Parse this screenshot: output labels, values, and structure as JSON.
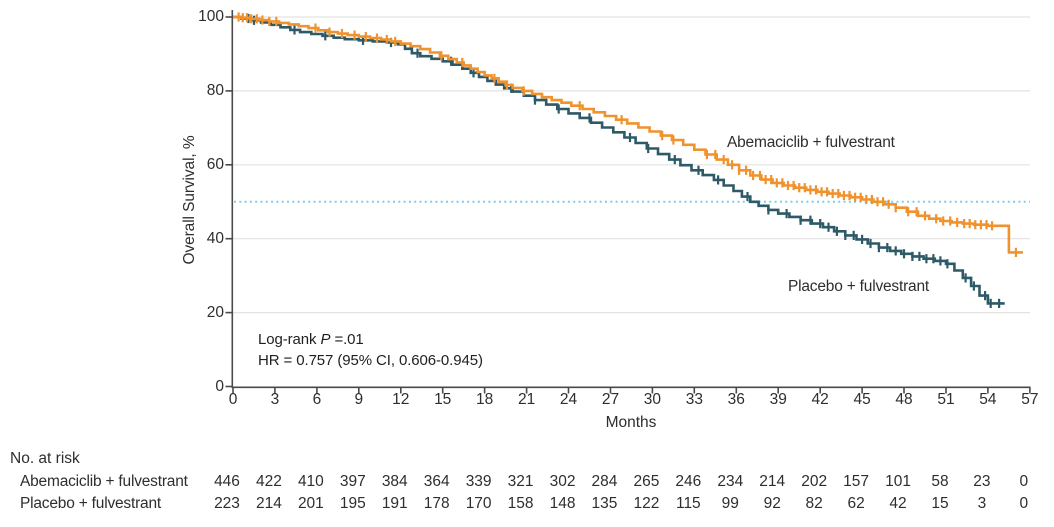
{
  "annotations": {
    "logrank_prefix": "Log-rank ",
    "logrank_p": "P",
    "logrank_suffix": " =.01",
    "hr": "HR = 0.757 (95% CI, 0.606-0.945)"
  },
  "colors": {
    "abemaciclib_orange": "#F0922D",
    "placebo_teal": "#2E5A68",
    "median_reference_blue": "#7CCDE9",
    "gridline_gray": "#E3E3E3",
    "axis_gray": "#4A4A4A",
    "text_dark": "#2E2E2E"
  },
  "chart_data": {
    "type": "line",
    "subtype": "kaplan-meier-step",
    "title": "",
    "xlabel": "Months",
    "ylabel": "Overall Survival, %",
    "xlim": [
      0,
      57
    ],
    "ylim": [
      0,
      100
    ],
    "x_ticks": [
      0,
      3,
      6,
      9,
      12,
      15,
      18,
      21,
      24,
      27,
      30,
      33,
      36,
      39,
      42,
      45,
      48,
      51,
      54,
      57
    ],
    "y_ticks": [
      0,
      20,
      40,
      60,
      80,
      100
    ],
    "grid": "horizontal-only",
    "legend_position": "inline-labels",
    "reference_line_y": 50,
    "series": [
      {
        "name": "Abemaciclib + fulvestrant",
        "color": "#F0922D",
        "end_x": 56.5,
        "steps": [
          [
            0,
            100
          ],
          [
            0.6,
            99.8
          ],
          [
            1.2,
            99.5
          ],
          [
            1.9,
            99.2
          ],
          [
            2.6,
            98.8
          ],
          [
            3.3,
            98.4
          ],
          [
            4,
            98
          ],
          [
            4.7,
            97.5
          ],
          [
            5.4,
            97
          ],
          [
            6.1,
            96.4
          ],
          [
            6.8,
            95.9
          ],
          [
            7.5,
            95.5
          ],
          [
            8.2,
            95.1
          ],
          [
            9,
            94.7
          ],
          [
            9.8,
            94.3
          ],
          [
            10.6,
            93.9
          ],
          [
            11.3,
            93.4
          ],
          [
            12,
            92.8
          ],
          [
            12.7,
            92.1
          ],
          [
            13.4,
            91.3
          ],
          [
            14.1,
            90.4
          ],
          [
            14.8,
            89.5
          ],
          [
            15.4,
            88.6
          ],
          [
            16,
            87.7
          ],
          [
            16.5,
            86.9
          ],
          [
            17,
            86
          ],
          [
            17.5,
            85.1
          ],
          [
            18,
            84.2
          ],
          [
            18.5,
            83.4
          ],
          [
            19,
            82.5
          ],
          [
            19.5,
            81.6
          ],
          [
            20,
            80.8
          ],
          [
            20.7,
            80
          ],
          [
            21.4,
            79.2
          ],
          [
            22.1,
            78.3
          ],
          [
            22.8,
            77.5
          ],
          [
            23.5,
            76.8
          ],
          [
            24.2,
            76
          ],
          [
            25,
            75.1
          ],
          [
            25.8,
            74.2
          ],
          [
            26.6,
            73.2
          ],
          [
            27.4,
            72.2
          ],
          [
            28.2,
            71.2
          ],
          [
            29,
            70.1
          ],
          [
            29.8,
            69
          ],
          [
            30.6,
            67.9
          ],
          [
            31.4,
            66.7
          ],
          [
            32.2,
            65.4
          ],
          [
            33,
            64.1
          ],
          [
            33.8,
            62.8
          ],
          [
            34.6,
            61.4
          ],
          [
            35.4,
            60
          ],
          [
            36.2,
            58.5
          ],
          [
            37,
            57.1
          ],
          [
            37.8,
            56
          ],
          [
            38.6,
            55.1
          ],
          [
            39.4,
            54.4
          ],
          [
            40.2,
            53.8
          ],
          [
            41,
            53.2
          ],
          [
            41.8,
            52.7
          ],
          [
            42.6,
            52.2
          ],
          [
            43.4,
            51.7
          ],
          [
            44.2,
            51.2
          ],
          [
            45,
            50.6
          ],
          [
            45.8,
            50
          ],
          [
            46.6,
            49.3
          ],
          [
            47.4,
            48.4
          ],
          [
            48.2,
            47.3
          ],
          [
            49,
            46.2
          ],
          [
            49.8,
            45.4
          ],
          [
            50.6,
            44.8
          ],
          [
            51.4,
            44.4
          ],
          [
            52.2,
            44.1
          ],
          [
            53,
            43.8
          ],
          [
            54,
            43.5
          ],
          [
            55.5,
            36.3
          ]
        ],
        "censor_times": [
          0.4,
          0.7,
          1,
          1.3,
          1.7,
          2.1,
          2.6,
          3.1,
          5.9,
          6.9,
          7.8,
          8.7,
          9.5,
          10.3,
          11,
          11.6,
          14.9,
          16.4,
          18.7,
          19.6,
          20.8,
          24.8,
          27.8,
          30.7,
          31.5,
          33.9,
          34.5,
          35.1,
          35.7,
          36.2,
          36.7,
          37.2,
          37.7,
          38.1,
          38.5,
          38.9,
          39.3,
          39.7,
          40.1,
          40.5,
          40.9,
          41.3,
          41.7,
          42.1,
          42.5,
          42.9,
          43.3,
          43.7,
          44.1,
          44.5,
          44.9,
          45.3,
          45.7,
          46.1,
          46.5,
          46.9,
          47.4,
          48.3,
          48.9,
          49.5,
          50.3,
          50.8,
          51.3,
          51.8,
          52.3,
          52.7,
          53.1,
          53.5,
          53.9,
          54.3,
          56
        ]
      },
      {
        "name": "Placebo + fulvestrant",
        "color": "#2E5A68",
        "end_x": 55.2,
        "steps": [
          [
            0,
            100
          ],
          [
            0.6,
            99.6
          ],
          [
            1.3,
            99.1
          ],
          [
            2,
            98.5
          ],
          [
            2.7,
            97.9
          ],
          [
            3.4,
            97.2
          ],
          [
            4.1,
            96.5
          ],
          [
            4.8,
            95.9
          ],
          [
            5.6,
            95.4
          ],
          [
            6.4,
            94.9
          ],
          [
            7.2,
            94.4
          ],
          [
            8,
            94
          ],
          [
            9,
            93.7
          ],
          [
            10,
            93.4
          ],
          [
            11,
            93.1
          ],
          [
            11.8,
            92.6
          ],
          [
            12.3,
            91.4
          ],
          [
            12.8,
            90.2
          ],
          [
            13.4,
            89.4
          ],
          [
            14.2,
            88.7
          ],
          [
            15,
            88
          ],
          [
            15.7,
            87.1
          ],
          [
            16.4,
            86
          ],
          [
            17,
            84.9
          ],
          [
            17.6,
            83.8
          ],
          [
            18.2,
            82.7
          ],
          [
            18.8,
            81.7
          ],
          [
            19.4,
            80.7
          ],
          [
            20,
            79.8
          ],
          [
            20.8,
            78.7
          ],
          [
            21.6,
            77.5
          ],
          [
            22.4,
            76.3
          ],
          [
            23.2,
            75.1
          ],
          [
            24,
            73.9
          ],
          [
            24.8,
            72.7
          ],
          [
            25.6,
            71.4
          ],
          [
            26.4,
            70.1
          ],
          [
            27.2,
            68.8
          ],
          [
            28,
            67.4
          ],
          [
            28.8,
            65.9
          ],
          [
            29.6,
            64.4
          ],
          [
            30.4,
            62.9
          ],
          [
            31.2,
            61.4
          ],
          [
            32,
            59.9
          ],
          [
            32.8,
            58.5
          ],
          [
            33.6,
            57.2
          ],
          [
            34.4,
            55.9
          ],
          [
            35.1,
            54.4
          ],
          [
            35.8,
            52.9
          ],
          [
            36.4,
            51.4
          ],
          [
            37,
            50
          ],
          [
            37.6,
            48.9
          ],
          [
            38.3,
            47.8
          ],
          [
            39,
            46.8
          ],
          [
            39.8,
            45.9
          ],
          [
            40.6,
            45
          ],
          [
            41.4,
            44.1
          ],
          [
            42.2,
            43.1
          ],
          [
            43,
            42
          ],
          [
            43.8,
            40.9
          ],
          [
            44.6,
            39.8
          ],
          [
            45.4,
            38.7
          ],
          [
            46.2,
            37.6
          ],
          [
            47,
            36.7
          ],
          [
            47.8,
            35.9
          ],
          [
            48.6,
            35.2
          ],
          [
            49.4,
            34.6
          ],
          [
            50.2,
            34
          ],
          [
            51,
            33.2
          ],
          [
            51.6,
            31.4
          ],
          [
            52.2,
            29.4
          ],
          [
            52.8,
            27.2
          ],
          [
            53.4,
            24.6
          ],
          [
            54,
            22.5
          ]
        ],
        "censor_times": [
          1.1,
          1.5,
          4.4,
          6.6,
          9.3,
          11.3,
          13.2,
          15.6,
          17.2,
          19.9,
          21.6,
          23.3,
          25.5,
          28.4,
          29.7,
          31.6,
          33.3,
          34.7,
          36.8,
          38.3,
          39.6,
          40.6,
          41.3,
          42,
          42.6,
          43.2,
          43.8,
          44.4,
          45,
          45.6,
          46.2,
          46.8,
          47.4,
          48,
          48.6,
          49.1,
          49.6,
          50.1,
          50.6,
          51.1,
          52.4,
          53,
          53.8,
          54.2,
          54.8
        ]
      }
    ],
    "at_risk": {
      "title": "No. at risk",
      "months": [
        0,
        3,
        6,
        9,
        12,
        15,
        18,
        21,
        24,
        27,
        30,
        33,
        36,
        39,
        42,
        45,
        48,
        51,
        54,
        57
      ],
      "rows": [
        {
          "label": "Abemaciclib + fulvestrant",
          "counts": [
            446,
            422,
            410,
            397,
            384,
            364,
            339,
            321,
            302,
            284,
            265,
            246,
            234,
            214,
            202,
            157,
            101,
            58,
            23,
            0
          ]
        },
        {
          "label": "Placebo + fulvestrant",
          "counts": [
            223,
            214,
            201,
            195,
            191,
            178,
            170,
            158,
            148,
            135,
            122,
            115,
            99,
            92,
            82,
            62,
            42,
            15,
            3,
            0
          ]
        }
      ]
    }
  }
}
